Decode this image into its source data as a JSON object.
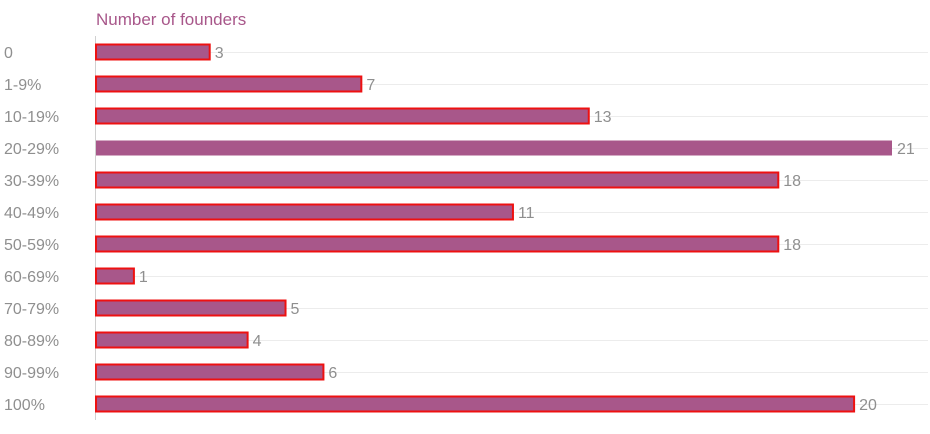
{
  "chart_data": {
    "type": "bar",
    "orientation": "horizontal",
    "title": "Number of founders",
    "categories": [
      "0",
      "1-9%",
      "10-19%",
      "20-29%",
      "30-39%",
      "40-49%",
      "50-59%",
      "60-69%",
      "70-79%",
      "80-89%",
      "90-99%",
      "100%"
    ],
    "values": [
      3,
      7,
      13,
      21,
      18,
      11,
      18,
      1,
      5,
      4,
      6,
      20
    ],
    "xlim": [
      0,
      21
    ],
    "grid": true,
    "bar_color": "#a8578a",
    "highlight_outline_color": "#ee1111",
    "outlined": [
      true,
      true,
      true,
      false,
      true,
      true,
      true,
      true,
      true,
      true,
      true,
      true
    ]
  }
}
